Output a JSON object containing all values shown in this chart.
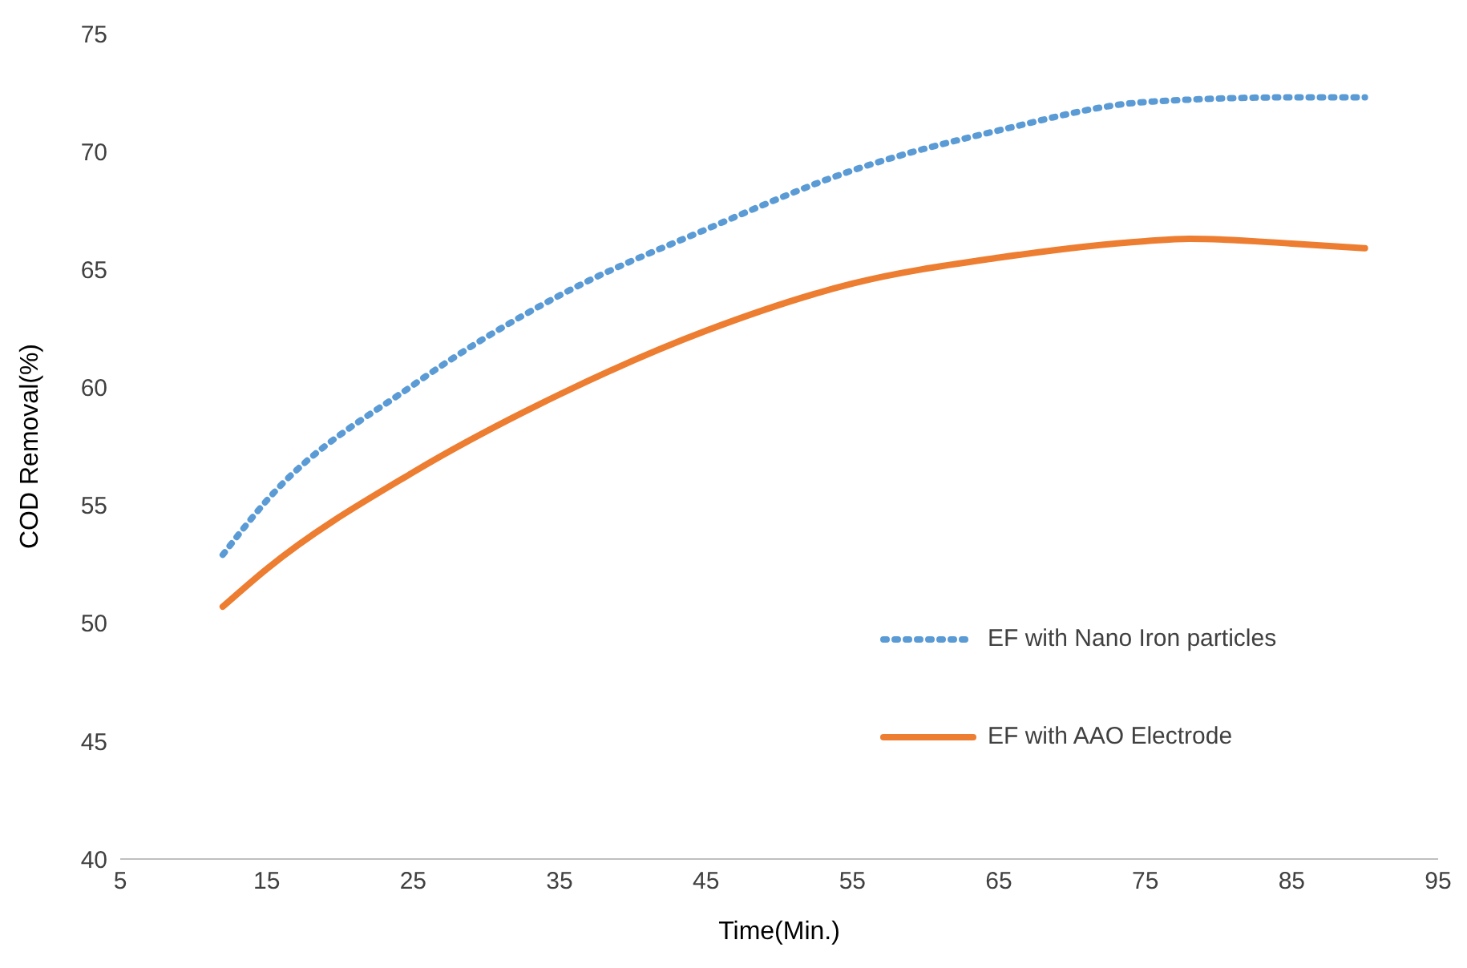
{
  "chart_data": {
    "type": "line",
    "xlabel": "Time(Min.)",
    "ylabel": "COD Removal(%)",
    "xlim": [
      5,
      95
    ],
    "xticks": [
      5,
      15,
      25,
      35,
      45,
      55,
      65,
      75,
      85,
      95
    ],
    "ylim": [
      40,
      75
    ],
    "yticks": [
      40,
      45,
      50,
      55,
      60,
      65,
      70,
      75
    ],
    "grid": false,
    "legend": "right",
    "marker": "none",
    "series": [
      {
        "name": "EF with Nano Iron particles",
        "color": "#5b9bd5",
        "line_style": "dotted",
        "x": [
          12,
          15,
          25,
          35,
          45,
          55,
          65,
          75,
          85,
          90
        ],
        "values": [
          52.9,
          55.2,
          60.1,
          63.9,
          66.7,
          69.2,
          70.9,
          72.1,
          72.3,
          72.3
        ]
      },
      {
        "name": "EF with AAO Electrode",
        "color": "#ed7d31",
        "line_style": "solid",
        "x": [
          12,
          15,
          25,
          35,
          45,
          55,
          65,
          75,
          78,
          85,
          90
        ],
        "values": [
          50.7,
          52.3,
          56.4,
          59.7,
          62.4,
          64.4,
          65.5,
          66.2,
          66.3,
          66.1,
          65.9
        ]
      }
    ]
  }
}
